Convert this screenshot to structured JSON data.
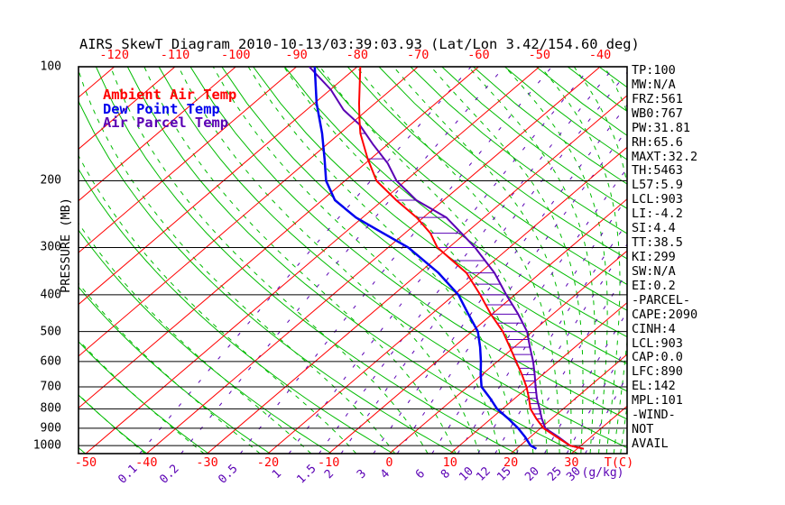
{
  "title": "AIRS SkewT Diagram 2010-10-13/03:39:03.93 (Lat/Lon 3.42/154.60 deg)",
  "colors": {
    "temperature": "#ff0000",
    "dewpoint": "#0000ee",
    "parcel": "#5a00b4",
    "adiabat_green": "#00bb00",
    "axis_black": "#000000"
  },
  "legend": [
    {
      "label": "Ambient Air Temp",
      "color": "#ff0000"
    },
    {
      "label": "Dew Point Temp",
      "color": "#0000ee"
    },
    {
      "label": "Air Parcel Temp",
      "color": "#5a00b4"
    }
  ],
  "axes": {
    "pressure_label": "PRESSURE (MB)",
    "pressure_ticks": [
      100,
      200,
      300,
      400,
      500,
      600,
      700,
      800,
      900,
      1000
    ],
    "top_temp_ticks": [
      -120,
      -110,
      -100,
      -90,
      -80,
      -70,
      -60,
      -50,
      -40
    ],
    "bottom_temp_ticks": [
      -50,
      -40,
      -30,
      -20,
      -10,
      0,
      10,
      20,
      30
    ],
    "temp_unit_label": "T(C)",
    "mixing_unit_label": "(g/kg)",
    "mixing_ratio_ticks": [
      "0.1",
      "0.2",
      "0.5",
      "1",
      "1.5",
      "2",
      "3",
      "4",
      "6",
      "8",
      "10",
      "12",
      "15",
      "20",
      "25",
      "30"
    ]
  },
  "panel": {
    "lines": [
      "TP:100",
      "MW:N/A",
      "FRZ:561",
      "WB0:767",
      "PW:31.81",
      "RH:65.6",
      "MAXT:32.2",
      "TH:5463",
      "L57:5.9",
      "LCL:903",
      "LI:-4.2",
      "SI:4.4",
      "TT:38.5",
      "KI:299",
      "SW:N/A",
      "EI:0.2",
      "-PARCEL-",
      "CAPE:2090",
      "CINH:4",
      "LCL:903",
      "CAP:0.0",
      "LFC:890",
      "EL:142",
      "MPL:101",
      "-WIND-",
      "NOT",
      "AVAIL"
    ]
  },
  "chart_data": {
    "type": "line",
    "subtype": "skewT-logP",
    "title": "AIRS SkewT Diagram 2010-10-13/03:39:03.93 (Lat/Lon 3.42/154.60 deg)",
    "xlabel": "T(C)",
    "ylabel": "PRESSURE (MB)",
    "pressure_range_mb": [
      100,
      1050
    ],
    "bottom_temp_range_c": [
      -50,
      30
    ],
    "top_temp_range_c": [
      -120,
      -40
    ],
    "legend_position": "top-left-inside",
    "grid": {
      "isotherms_c": {
        "from": -160,
        "to": 60,
        "step": 10
      },
      "dry_adiabats_theta_k": {
        "from": 220,
        "to": 510,
        "step": 10
      },
      "moist_adiabats_theta_e_k": {
        "from": 230,
        "to": 450,
        "step": 10
      },
      "mixing_ratio_lines_g_kg": [
        0.1,
        0.2,
        0.5,
        1,
        1.5,
        2,
        3,
        4,
        6,
        8,
        10,
        12,
        15,
        20,
        25,
        30
      ],
      "cape_hatch_between": [
        "Ambient Air Temp",
        "Air Parcel Temp"
      ],
      "cape_hatch_pressure_mb": {
        "from": 150,
        "to": 875,
        "step": 25
      }
    },
    "series": [
      {
        "name": "Ambient Air Temp",
        "color": "#ff0000",
        "units": [
          "mb",
          "C"
        ],
        "points": [
          [
            100,
            -79.5
          ],
          [
            125,
            -72.6
          ],
          [
            138,
            -69.4
          ],
          [
            150,
            -66.6
          ],
          [
            175,
            -60.5
          ],
          [
            200,
            -54.8
          ],
          [
            225,
            -47.8
          ],
          [
            250,
            -41.1
          ],
          [
            275,
            -35.8
          ],
          [
            300,
            -31.9
          ],
          [
            350,
            -22.2
          ],
          [
            400,
            -15.7
          ],
          [
            450,
            -10.2
          ],
          [
            500,
            -4.9
          ],
          [
            550,
            -0.7
          ],
          [
            600,
            3.1
          ],
          [
            650,
            6.6
          ],
          [
            700,
            9.7
          ],
          [
            750,
            12.3
          ],
          [
            800,
            14.6
          ],
          [
            850,
            17.5
          ],
          [
            900,
            20.5
          ],
          [
            950,
            24.4
          ],
          [
            1000,
            28.2
          ],
          [
            1020,
            31.1
          ]
        ]
      },
      {
        "name": "Dew Point Temp",
        "color": "#0000ee",
        "units": [
          "mb",
          "C"
        ],
        "points": [
          [
            100,
            -87.0
          ],
          [
            125,
            -79.6
          ],
          [
            150,
            -72.9
          ],
          [
            175,
            -67.6
          ],
          [
            200,
            -63.1
          ],
          [
            225,
            -57.9
          ],
          [
            250,
            -51.1
          ],
          [
            275,
            -43.6
          ],
          [
            300,
            -36.7
          ],
          [
            350,
            -26.8
          ],
          [
            400,
            -19.3
          ],
          [
            450,
            -13.9
          ],
          [
            500,
            -9.0
          ],
          [
            550,
            -5.6
          ],
          [
            600,
            -2.7
          ],
          [
            650,
            -0.2
          ],
          [
            700,
            2.3
          ],
          [
            750,
            5.9
          ],
          [
            800,
            9.1
          ],
          [
            850,
            12.9
          ],
          [
            900,
            16.3
          ],
          [
            950,
            19.2
          ],
          [
            1000,
            21.7
          ],
          [
            1020,
            23.3
          ]
        ]
      },
      {
        "name": "Air Parcel Temp",
        "color": "#5a00b4",
        "units": [
          "mb",
          "C"
        ],
        "points": [
          [
            100,
            -87.9
          ],
          [
            115,
            -79.9
          ],
          [
            130,
            -73.9
          ],
          [
            142,
            -68.5
          ],
          [
            160,
            -62.5
          ],
          [
            180,
            -56.3
          ],
          [
            200,
            -51.5
          ],
          [
            225,
            -44.5
          ],
          [
            250,
            -36.2
          ],
          [
            275,
            -30.7
          ],
          [
            300,
            -25.7
          ],
          [
            350,
            -17.6
          ],
          [
            400,
            -11.4
          ],
          [
            450,
            -5.7
          ],
          [
            500,
            -0.9
          ],
          [
            550,
            2.6
          ],
          [
            600,
            5.9
          ],
          [
            650,
            8.7
          ],
          [
            700,
            11.2
          ],
          [
            750,
            13.6
          ],
          [
            800,
            16.1
          ],
          [
            850,
            18.4
          ],
          [
            900,
            20.8
          ],
          [
            950,
            24.7
          ],
          [
            1000,
            28.2
          ],
          [
            1020,
            31.1
          ]
        ]
      }
    ]
  }
}
